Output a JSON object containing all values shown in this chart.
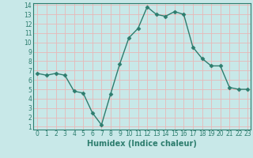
{
  "x": [
    0,
    1,
    2,
    3,
    4,
    5,
    6,
    7,
    8,
    9,
    10,
    11,
    12,
    13,
    14,
    15,
    16,
    17,
    18,
    19,
    20,
    21,
    22,
    23
  ],
  "y": [
    6.7,
    6.5,
    6.7,
    6.5,
    4.8,
    4.6,
    2.5,
    1.2,
    4.5,
    7.7,
    10.5,
    11.5,
    13.8,
    13.0,
    12.8,
    13.3,
    13.0,
    9.5,
    8.3,
    7.5,
    7.5,
    5.2,
    5.0,
    5.0
  ],
  "line_color": "#2d7d6e",
  "marker": "D",
  "marker_size": 2.5,
  "bg_color": "#c8e8e8",
  "grid_color": "#e8b8b8",
  "xlabel": "Humidex (Indice chaleur)",
  "ylim_min": 1,
  "ylim_max": 14,
  "xlim_min": 0,
  "xlim_max": 23,
  "yticks": [
    1,
    2,
    3,
    4,
    5,
    6,
    7,
    8,
    9,
    10,
    11,
    12,
    13,
    14
  ],
  "xticks": [
    0,
    1,
    2,
    3,
    4,
    5,
    6,
    7,
    8,
    9,
    10,
    11,
    12,
    13,
    14,
    15,
    16,
    17,
    18,
    19,
    20,
    21,
    22,
    23
  ],
  "tick_fontsize": 5.5,
  "xlabel_fontsize": 7,
  "linewidth": 1.0
}
